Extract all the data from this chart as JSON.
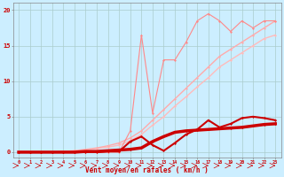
{
  "x": [
    0,
    1,
    2,
    3,
    4,
    5,
    6,
    7,
    8,
    9,
    10,
    11,
    12,
    13,
    14,
    15,
    16,
    17,
    18,
    19,
    20,
    21,
    22,
    23
  ],
  "line_upper_scatter": [
    0,
    0,
    0,
    0,
    0,
    0,
    0,
    0,
    0,
    0,
    3.0,
    16.5,
    5.5,
    13.0,
    13.0,
    15.5,
    18.5,
    19.5,
    18.5,
    17.0,
    18.5,
    17.5,
    18.5,
    18.5
  ],
  "line_upper_smooth1": [
    0,
    0,
    0,
    0,
    0.1,
    0.2,
    0.4,
    0.6,
    0.9,
    1.3,
    2.0,
    3.0,
    4.5,
    6.0,
    7.5,
    9.0,
    10.5,
    12.0,
    13.5,
    14.5,
    15.5,
    16.5,
    17.5,
    18.5
  ],
  "line_upper_smooth2": [
    0,
    0,
    0,
    0,
    0.1,
    0.2,
    0.3,
    0.5,
    0.7,
    1.0,
    1.6,
    2.5,
    3.8,
    5.0,
    6.5,
    7.8,
    9.2,
    10.5,
    12.0,
    13.0,
    14.0,
    15.0,
    16.0,
    16.5
  ],
  "line_lower_scatter": [
    0,
    0,
    0,
    0,
    0,
    0,
    0,
    0,
    0.1,
    0.1,
    1.5,
    2.2,
    1.0,
    0.2,
    1.3,
    2.5,
    3.2,
    4.5,
    3.5,
    4.0,
    4.8,
    5.0,
    4.8,
    4.5
  ],
  "line_lower_smooth": [
    0,
    0,
    0,
    0,
    0,
    0,
    0.1,
    0.1,
    0.2,
    0.3,
    0.4,
    0.6,
    1.5,
    2.2,
    2.8,
    3.0,
    3.1,
    3.2,
    3.3,
    3.4,
    3.5,
    3.7,
    3.9,
    4.0
  ],
  "colors": {
    "upper_scatter": "#ff8888",
    "upper_smooth1": "#ffaaaa",
    "upper_smooth2": "#ffbbbb",
    "lower_scatter": "#cc0000",
    "lower_smooth": "#cc0000"
  },
  "linewidths": {
    "upper_scatter": 0.8,
    "upper_smooth1": 1.0,
    "upper_smooth2": 1.0,
    "lower_scatter": 1.5,
    "lower_smooth": 2.5
  },
  "background_color": "#cceeff",
  "grid_color": "#aacccc",
  "xlabel": "Vent moyen/en rafales ( km/h )",
  "ylabel_ticks": [
    0,
    5,
    10,
    15,
    20
  ],
  "xlim": [
    -0.5,
    23.5
  ],
  "ylim": [
    -0.8,
    21
  ],
  "xlabel_color": "#cc0000",
  "tick_color": "#cc0000"
}
